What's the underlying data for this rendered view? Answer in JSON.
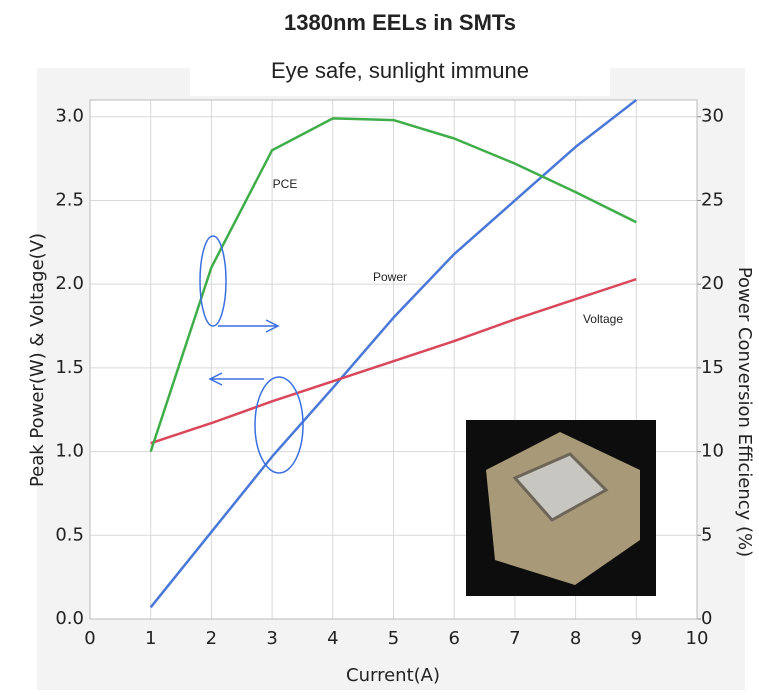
{
  "chart_data": {
    "type": "line",
    "title": "1380nm EELs in SMTs",
    "subtitle": "Eye safe, sunlight immune",
    "x_label": "Current(A)",
    "y_label": "Peak Power(W) & Voltage(V)",
    "y2_label": "Power Conversion Efficiency (%)",
    "x": [
      1,
      2,
      3,
      4,
      5,
      6,
      7,
      8,
      9
    ],
    "series": [
      {
        "name": "Power",
        "color": "#4a78d8",
        "values": [
          0.07,
          0.52,
          0.97,
          1.38,
          1.8,
          2.18,
          2.5,
          2.82,
          3.1
        ]
      },
      {
        "name": "Voltage",
        "color": "#d9475a",
        "values": [
          1.05,
          1.17,
          1.3,
          1.42,
          1.54,
          1.66,
          1.79,
          1.91,
          2.03
        ]
      },
      {
        "name": "PCE",
        "color": "#3fae49",
        "axis": "y2",
        "values": [
          10,
          21,
          28,
          29.9,
          29.8,
          28.7,
          27.2,
          25.5,
          23.7
        ]
      }
    ],
    "xlim": [
      0,
      10
    ],
    "xticks": [
      0,
      1,
      2,
      3,
      4,
      5,
      6,
      7,
      8,
      9,
      10
    ],
    "ylim": [
      0,
      3.1
    ],
    "yticks": [
      {
        "value": 0,
        "label": "0.0"
      },
      0.5,
      {
        "value": 1,
        "label": "1.0"
      },
      1.5,
      {
        "value": 2,
        "label": "2.0"
      },
      2.5,
      {
        "value": 3,
        "label": "3.0"
      }
    ],
    "y2lim": [
      0,
      31
    ],
    "y2ticks": [
      0,
      5,
      10,
      15,
      20,
      25,
      30
    ],
    "grid": true
  }
}
